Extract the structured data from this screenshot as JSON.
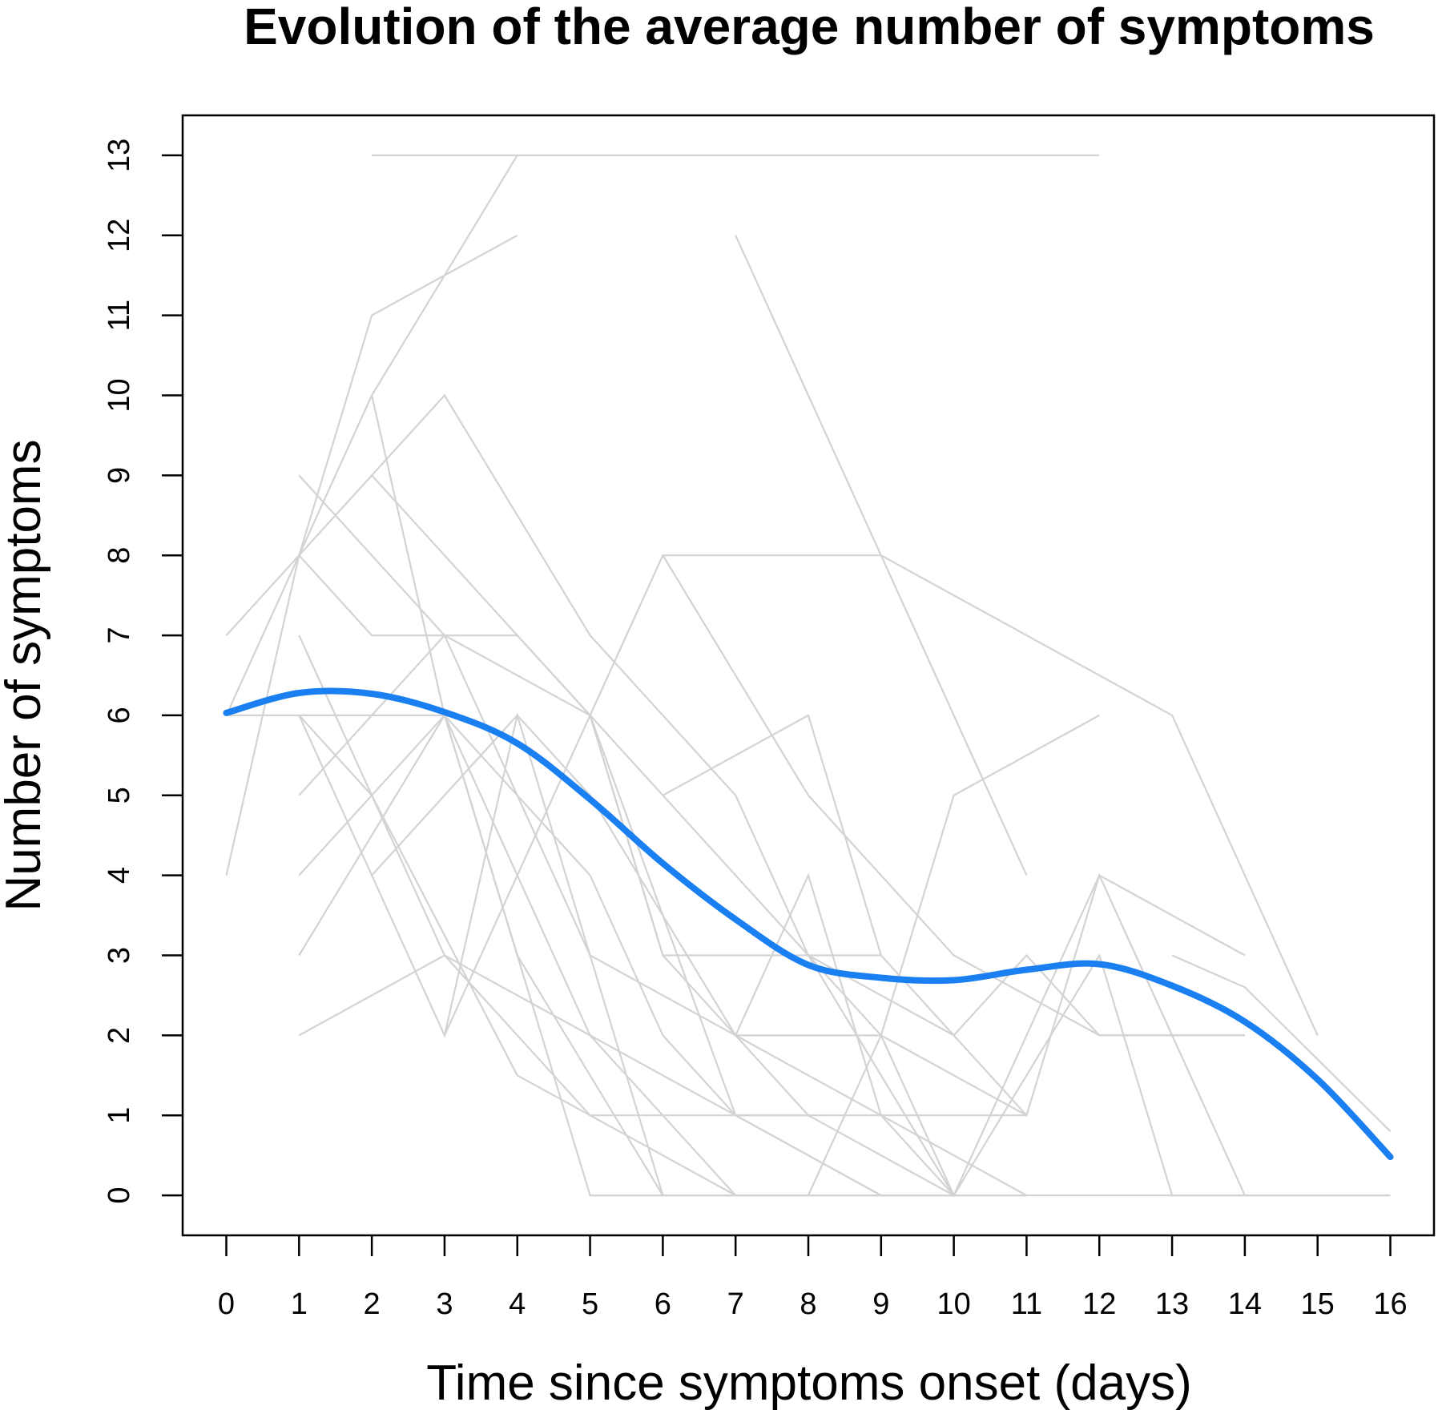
{
  "chart_data": {
    "type": "line",
    "title": "Evolution of the average number of symptoms",
    "xlabel": "Time since symptoms onset (days)",
    "ylabel": "Number of symptoms",
    "x_ticks": [
      "0",
      "1",
      "2",
      "3",
      "4",
      "5",
      "6",
      "7",
      "8",
      "9",
      "10",
      "11",
      "12",
      "13",
      "14",
      "15",
      "16"
    ],
    "y_ticks": [
      "0",
      "1",
      "2",
      "3",
      "4",
      "5",
      "6",
      "7",
      "8",
      "9",
      "10",
      "11",
      "12",
      "13"
    ],
    "xlim": [
      -0.6,
      16.6
    ],
    "ylim": [
      -0.5,
      13.5
    ],
    "grid": false,
    "colors": {
      "individual": "#d3d3d3",
      "mean": "#1a7ff0"
    },
    "mean_series": {
      "x": [
        0,
        1,
        2,
        3,
        4,
        5,
        6,
        7,
        8,
        9,
        10,
        11,
        12,
        13,
        14,
        15,
        16
      ],
      "y": [
        6.03,
        6.28,
        6.27,
        6.04,
        5.65,
        4.95,
        4.15,
        3.45,
        2.88,
        2.72,
        2.69,
        2.82,
        2.89,
        2.62,
        2.17,
        1.45,
        0.48
      ]
    },
    "individual_series": [
      [
        [
          2,
          13
        ],
        [
          4,
          13
        ],
        [
          12,
          13
        ]
      ],
      [
        [
          1,
          8
        ],
        [
          2,
          11
        ],
        [
          4,
          12
        ]
      ],
      [
        [
          0,
          4
        ],
        [
          1,
          8
        ],
        [
          2,
          10
        ],
        [
          3,
          11.5
        ],
        [
          4,
          13
        ]
      ],
      [
        [
          0,
          7
        ],
        [
          1,
          8
        ],
        [
          3,
          10
        ],
        [
          5,
          7
        ],
        [
          7,
          5
        ],
        [
          8,
          3
        ],
        [
          10,
          2
        ],
        [
          11,
          3
        ],
        [
          12,
          2
        ],
        [
          14,
          2
        ]
      ],
      [
        [
          2,
          10
        ],
        [
          3,
          6
        ],
        [
          5,
          0
        ],
        [
          6,
          0
        ]
      ],
      [
        [
          1,
          9
        ],
        [
          2,
          8
        ],
        [
          3,
          7
        ],
        [
          5,
          6
        ],
        [
          6,
          3
        ],
        [
          9,
          3
        ]
      ],
      [
        [
          2,
          9
        ],
        [
          4,
          7
        ],
        [
          5,
          6
        ],
        [
          6,
          5
        ],
        [
          7,
          4
        ],
        [
          9,
          2
        ],
        [
          10,
          0
        ]
      ],
      [
        [
          7,
          12
        ],
        [
          9,
          8
        ],
        [
          11,
          4
        ]
      ],
      [
        [
          0,
          6
        ],
        [
          1,
          8
        ],
        [
          2,
          7
        ],
        [
          4,
          7
        ],
        [
          5,
          6
        ],
        [
          7,
          1
        ],
        [
          11,
          1
        ]
      ],
      [
        [
          5,
          6
        ],
        [
          6,
          8
        ],
        [
          7,
          8
        ],
        [
          9,
          8
        ],
        [
          13,
          6
        ],
        [
          15,
          2
        ]
      ],
      [
        [
          0,
          6
        ],
        [
          1,
          6
        ],
        [
          3,
          6
        ],
        [
          4,
          5
        ],
        [
          5,
          4
        ],
        [
          6,
          2
        ],
        [
          7,
          1
        ],
        [
          9,
          0
        ],
        [
          10,
          0
        ]
      ],
      [
        [
          1,
          5
        ],
        [
          3,
          7
        ],
        [
          5,
          3
        ],
        [
          7,
          2
        ],
        [
          9,
          2
        ],
        [
          11,
          1
        ]
      ],
      [
        [
          1,
          4
        ],
        [
          3,
          6
        ],
        [
          4,
          3
        ],
        [
          6,
          0
        ],
        [
          7,
          0
        ]
      ],
      [
        [
          1,
          3
        ],
        [
          3,
          6
        ],
        [
          5,
          2
        ],
        [
          7,
          1
        ],
        [
          9,
          0
        ],
        [
          11,
          0
        ]
      ],
      [
        [
          1,
          2
        ],
        [
          3,
          3
        ],
        [
          5,
          1
        ],
        [
          7,
          0
        ],
        [
          9,
          0
        ]
      ],
      [
        [
          1,
          7
        ],
        [
          3,
          3
        ],
        [
          5,
          2
        ],
        [
          7,
          0
        ],
        [
          8,
          0
        ]
      ],
      [
        [
          1,
          6
        ],
        [
          2,
          4
        ],
        [
          3,
          2
        ],
        [
          4,
          6
        ],
        [
          6,
          0
        ]
      ],
      [
        [
          2,
          4
        ],
        [
          3,
          5
        ],
        [
          4,
          6
        ],
        [
          5,
          5
        ],
        [
          7,
          2
        ],
        [
          9,
          1
        ],
        [
          11,
          0
        ]
      ],
      [
        [
          3,
          2
        ],
        [
          5,
          6
        ],
        [
          6,
          3
        ],
        [
          8,
          1
        ],
        [
          10,
          0
        ]
      ],
      [
        [
          6,
          5
        ],
        [
          8,
          6
        ],
        [
          9,
          3
        ],
        [
          10,
          2
        ],
        [
          11,
          1
        ],
        [
          12,
          4
        ],
        [
          14,
          0
        ]
      ],
      [
        [
          6,
          8
        ],
        [
          8,
          5
        ],
        [
          10,
          3
        ],
        [
          12,
          2
        ],
        [
          14,
          2
        ]
      ],
      [
        [
          7,
          2
        ],
        [
          8,
          4
        ],
        [
          9,
          1
        ],
        [
          10,
          0
        ],
        [
          12,
          3
        ],
        [
          13,
          0
        ],
        [
          16,
          0
        ]
      ],
      [
        [
          8,
          0
        ],
        [
          9,
          2
        ],
        [
          10,
          5
        ],
        [
          12,
          6
        ]
      ],
      [
        [
          8,
          3
        ],
        [
          10,
          0
        ],
        [
          12,
          4
        ],
        [
          14,
          3
        ]
      ],
      [
        [
          13,
          3
        ],
        [
          14,
          2.6
        ],
        [
          16,
          0.8
        ]
      ],
      [
        [
          5,
          0
        ],
        [
          6,
          0
        ],
        [
          7,
          0
        ],
        [
          9,
          0
        ],
        [
          11,
          0
        ],
        [
          12,
          0
        ],
        [
          13,
          0
        ],
        [
          16,
          0
        ]
      ],
      [
        [
          1,
          6
        ],
        [
          2,
          5
        ],
        [
          4,
          1.5
        ],
        [
          5,
          1
        ],
        [
          8,
          1
        ]
      ]
    ]
  }
}
